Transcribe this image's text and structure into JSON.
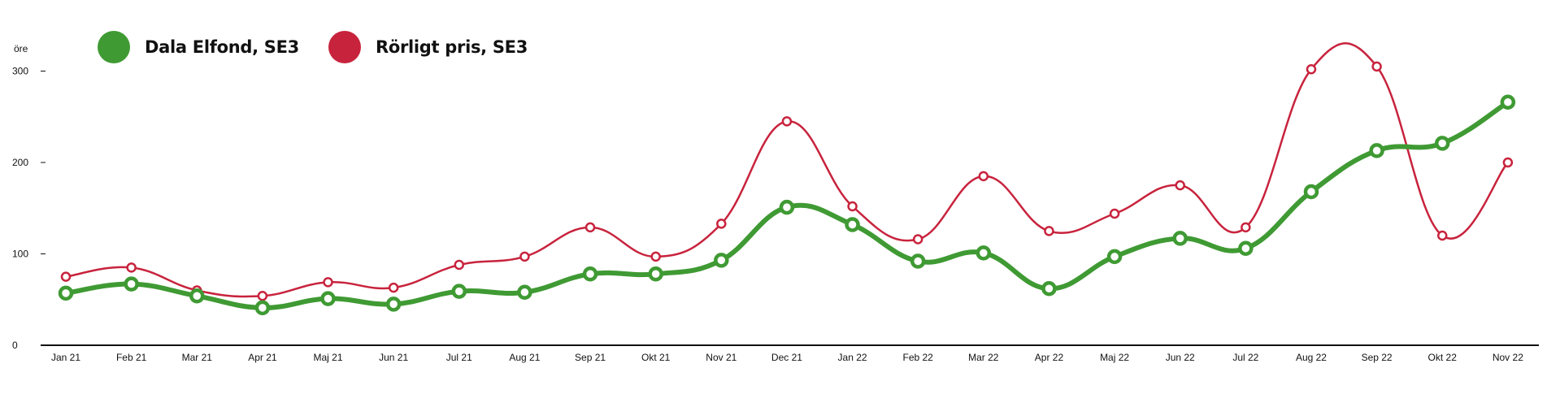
{
  "chart_data": {
    "type": "line",
    "ylabel": "öre",
    "ylim": [
      0,
      300
    ],
    "yticks": [
      0,
      100,
      200,
      300
    ],
    "grid": false,
    "legend_position": "top-left",
    "categories": [
      "Jan 21",
      "Feb 21",
      "Mar 21",
      "Apr 21",
      "Maj 21",
      "Jun 21",
      "Jul 21",
      "Aug 21",
      "Sep 21",
      "Okt 21",
      "Nov 21",
      "Dec 21",
      "Jan 22",
      "Feb 22",
      "Mar 22",
      "Apr 22",
      "Maj 22",
      "Jun 22",
      "Jul 22",
      "Aug 22",
      "Sep 22",
      "Okt 22",
      "Nov 22"
    ],
    "series": [
      {
        "name": "Dala Elfond, SE3",
        "color": "#3f9a33",
        "values": [
          57,
          67,
          54,
          41,
          51,
          45,
          59,
          58,
          78,
          78,
          93,
          151,
          132,
          92,
          101,
          62,
          97,
          117,
          106,
          168,
          213,
          221,
          266
        ]
      },
      {
        "name": "Rörligt pris, SE3",
        "color": "#c8233d",
        "values": [
          75,
          85,
          60,
          54,
          69,
          63,
          88,
          97,
          129,
          97,
          133,
          245,
          152,
          116,
          185,
          125,
          144,
          175,
          129,
          302,
          305,
          120,
          200
        ]
      }
    ]
  }
}
